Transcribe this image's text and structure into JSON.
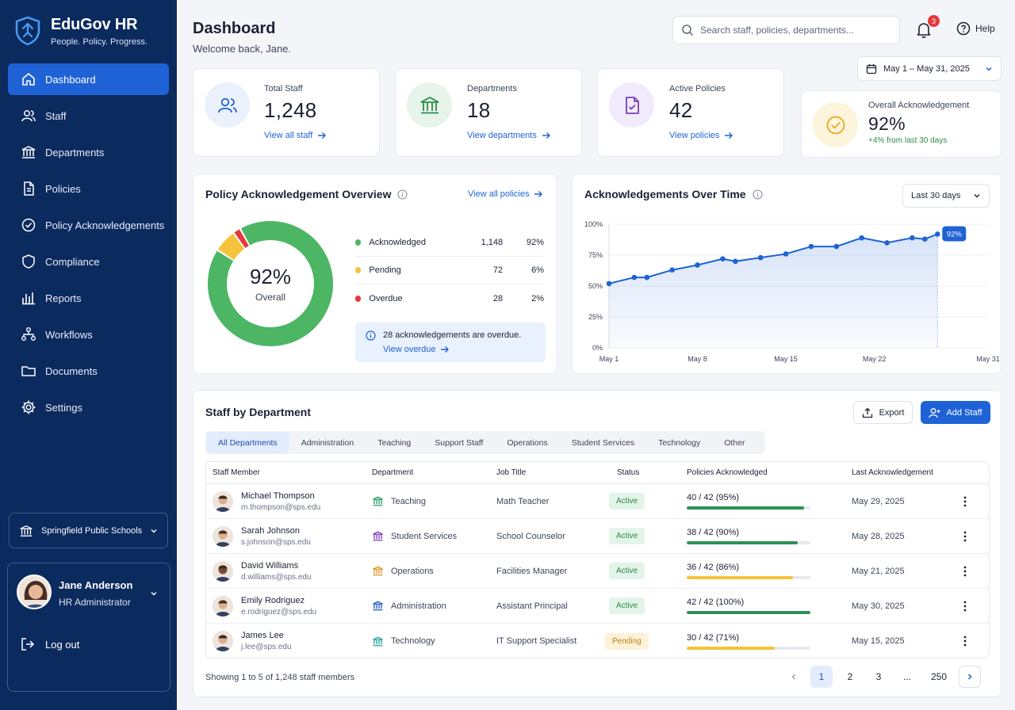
{
  "brand": {
    "title": "EduGov HR",
    "tagline": "People. Policy. Progress."
  },
  "sidebar": {
    "items": [
      {
        "label": "Dashboard",
        "icon": "home-icon",
        "active": true
      },
      {
        "label": "Staff",
        "icon": "users-icon"
      },
      {
        "label": "Departments",
        "icon": "building-icon"
      },
      {
        "label": "Policies",
        "icon": "document-icon"
      },
      {
        "label": "Policy Acknowledgements",
        "icon": "check-circle-icon"
      },
      {
        "label": "Compliance",
        "icon": "shield-icon"
      },
      {
        "label": "Reports",
        "icon": "bar-chart-icon"
      },
      {
        "label": "Workflows",
        "icon": "workflow-icon"
      },
      {
        "label": "Documents",
        "icon": "folder-icon"
      },
      {
        "label": "Settings",
        "icon": "gear-icon"
      }
    ],
    "org": "Springfield Public Schools",
    "user": {
      "name": "Jane Anderson",
      "role": "HR Administrator"
    },
    "logout": "Log out"
  },
  "header": {
    "title": "Dashboard",
    "welcome": "Welcome back, Jane.",
    "search_placeholder": "Search staff, policies, departments...",
    "notifications": "3",
    "help": "Help",
    "date_range": "May 1 – May 31, 2025"
  },
  "stats": [
    {
      "label": "Total Staff",
      "value": "1,248",
      "link": "View all staff"
    },
    {
      "label": "Departments",
      "value": "18",
      "link": "View departments"
    },
    {
      "label": "Active Policies",
      "value": "42",
      "link": "View policies"
    },
    {
      "label": "Overall Acknowledgement",
      "value": "92%",
      "delta": "+4% from last 30 days"
    }
  ],
  "overview": {
    "title": "Policy Acknowledgement Overview",
    "link": "View all policies",
    "center_value": "92%",
    "center_label": "Overall",
    "rows": [
      {
        "label": "Acknowledged",
        "count": "1,148",
        "pct": "92%",
        "color": "#4cb665"
      },
      {
        "label": "Pending",
        "count": "72",
        "pct": "6%",
        "color": "#f5c33b"
      },
      {
        "label": "Overdue",
        "count": "28",
        "pct": "2%",
        "color": "#e5393b"
      }
    ],
    "note": "28 acknowledgements are overdue.",
    "note_link": "View overdue"
  },
  "chart_data": {
    "type": "area",
    "title": "Acknowledgements Over Time",
    "range_select": "Last 30 days",
    "y_ticks": [
      "100%",
      "75%",
      "50%",
      "25%",
      "0%"
    ],
    "x_ticks": [
      "May 1",
      "May 8",
      "May 15",
      "May 22",
      "May 31"
    ],
    "ylim": [
      0,
      100
    ],
    "x": [
      1,
      3,
      4,
      6,
      8,
      10,
      11,
      13,
      15,
      17,
      19,
      21,
      23,
      25,
      26,
      27
    ],
    "values": [
      52,
      57,
      57,
      63,
      67,
      72,
      70,
      73,
      76,
      82,
      82,
      89,
      85,
      89,
      88,
      92
    ],
    "last_label": "92%",
    "color": "#1e62d6"
  },
  "staff": {
    "title": "Staff by Department",
    "export": "Export",
    "add": "Add Staff",
    "tabs": [
      "All Departments",
      "Administration",
      "Teaching",
      "Support Staff",
      "Operations",
      "Student Services",
      "Technology",
      "Other"
    ],
    "columns": [
      "Staff Member",
      "Department",
      "Job Title",
      "Status",
      "Policies Acknowledged",
      "Last Acknowledgement"
    ],
    "rows": [
      {
        "name": "Michael Thompson",
        "email": "m.thompson@sps.edu",
        "dept": "Teaching",
        "dept_color": "#2d9a6a",
        "title": "Math Teacher",
        "status": "Active",
        "ack": "40 / 42 (95%)",
        "ack_fraction": 0.95,
        "bar_color": "#2f8f55",
        "last": "May 29, 2025"
      },
      {
        "name": "Sarah Johnson",
        "email": "s.johnson@sps.edu",
        "dept": "Student Services",
        "dept_color": "#7b3fb5",
        "title": "School Counselor",
        "status": "Active",
        "ack": "38 / 42 (90%)",
        "ack_fraction": 0.9,
        "bar_color": "#2f8f55",
        "last": "May 28, 2025"
      },
      {
        "name": "David Williams",
        "email": "d.williams@sps.edu",
        "dept": "Operations",
        "dept_color": "#e0962a",
        "title": "Facilities Manager",
        "status": "Active",
        "ack": "36 / 42 (86%)",
        "ack_fraction": 0.86,
        "bar_color": "#f5c33b",
        "last": "May 21, 2025"
      },
      {
        "name": "Emily Rodriguez",
        "email": "e.rodriguez@sps.edu",
        "dept": "Administration",
        "dept_color": "#2b5fc0",
        "title": "Assistant Principal",
        "status": "Active",
        "ack": "42 / 42 (100%)",
        "ack_fraction": 1.0,
        "bar_color": "#2f8f55",
        "last": "May 30, 2025"
      },
      {
        "name": "James Lee",
        "email": "j.lee@sps.edu",
        "dept": "Technology",
        "dept_color": "#2aa5a0",
        "title": "IT Support Specialist",
        "status": "Pending",
        "ack": "30 / 42 (71%)",
        "ack_fraction": 0.71,
        "bar_color": "#f5c33b",
        "last": "May 15, 2025"
      }
    ],
    "showing": "Showing 1 to 5 of 1,248 staff members",
    "pages": [
      "1",
      "2",
      "3",
      "...",
      "250"
    ]
  }
}
